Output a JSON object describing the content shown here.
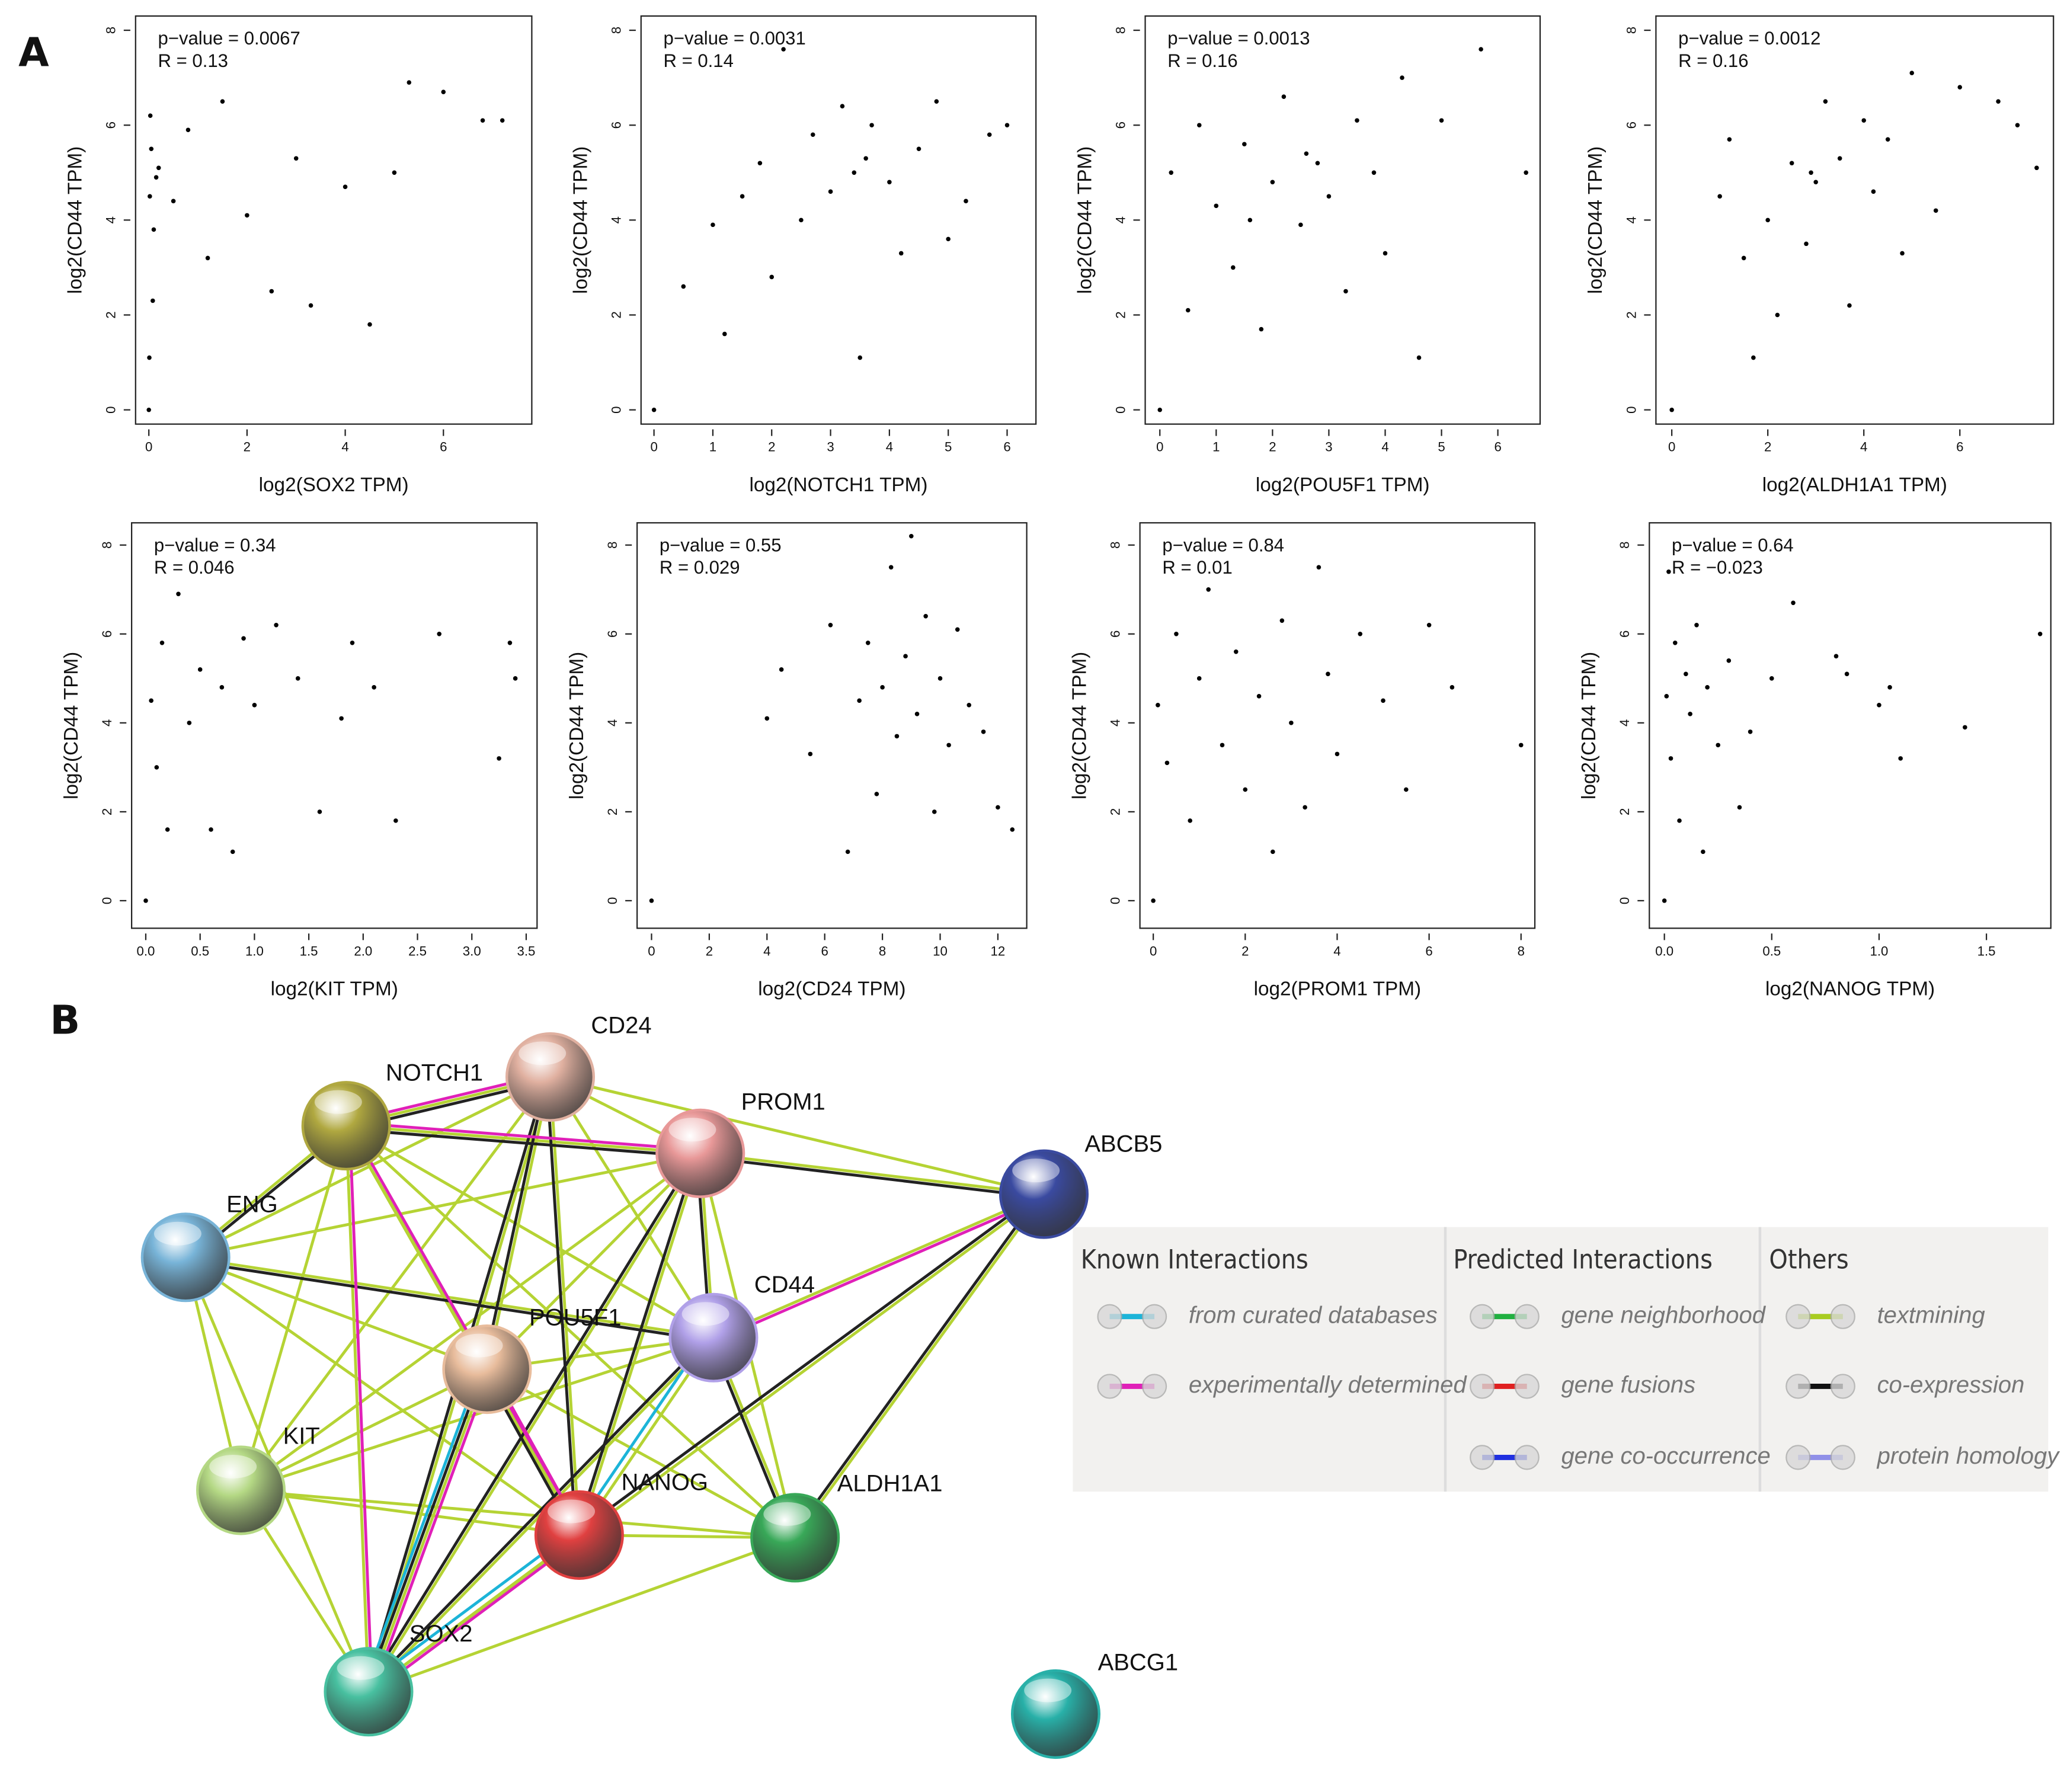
{
  "panels": [
    "A",
    "B"
  ],
  "chart_data": [
    {
      "type": "scatter",
      "annotations": [
        "p−value = 0.0067",
        "R = 0.13"
      ],
      "x_label": "log2(SOX2 TPM)",
      "y_label": "log2(CD44 TPM)",
      "color": "#000000",
      "xlim": [
        -0.27,
        7.8
      ],
      "ylim": [
        -0.3,
        8.3
      ],
      "xticks": [
        0,
        2,
        4,
        6
      ],
      "yticks": [
        0,
        2,
        4,
        6,
        8
      ],
      "x": [
        0,
        0.02,
        0.05,
        0.1,
        0.03,
        0.08,
        0.15,
        0.01,
        0.2,
        0.5,
        0.8,
        1.2,
        1.5,
        2.0,
        2.5,
        3.0,
        3.3,
        4.0,
        4.5,
        5.0,
        5.3,
        6.0,
        6.8,
        7.2
      ],
      "y": [
        0,
        4.5,
        5.5,
        3.8,
        6.2,
        2.3,
        4.9,
        1.1,
        5.1,
        4.4,
        5.9,
        3.2,
        6.5,
        4.1,
        2.5,
        5.3,
        2.2,
        4.7,
        1.8,
        5.0,
        6.9,
        6.7,
        6.1,
        6.1
      ]
    },
    {
      "type": "scatter",
      "annotations": [
        "p−value = 0.0031",
        "R = 0.14"
      ],
      "x_label": "log2(NOTCH1 TPM)",
      "y_label": "log2(CD44 TPM)",
      "color": "#000000",
      "xlim": [
        -0.22,
        6.49
      ],
      "ylim": [
        -0.3,
        8.3
      ],
      "xticks": [
        0,
        1,
        2,
        3,
        4,
        5,
        6
      ],
      "yticks": [
        0,
        2,
        4,
        6,
        8
      ],
      "x": [
        0,
        0.5,
        1.0,
        1.2,
        1.5,
        1.8,
        2.0,
        2.2,
        2.5,
        2.7,
        3.0,
        3.2,
        3.4,
        3.5,
        3.7,
        4.0,
        4.2,
        4.5,
        4.8,
        5.0,
        5.3,
        5.7,
        6.0,
        3.6
      ],
      "y": [
        0,
        2.6,
        3.9,
        1.6,
        4.5,
        5.2,
        2.8,
        7.6,
        4.0,
        5.8,
        4.6,
        6.4,
        5.0,
        1.1,
        6.0,
        4.8,
        3.3,
        5.5,
        6.5,
        3.6,
        4.4,
        5.8,
        6.0,
        5.3
      ]
    },
    {
      "type": "scatter",
      "annotations": [
        "p−value = 0.0013",
        "R = 0.16"
      ],
      "x_label": "log2(POU5F1 TPM)",
      "y_label": "log2(CD44 TPM)",
      "color": "#000000",
      "xlim": [
        -0.26,
        6.75
      ],
      "ylim": [
        -0.3,
        8.3
      ],
      "xticks": [
        0,
        1,
        2,
        3,
        4,
        5,
        6
      ],
      "yticks": [
        0,
        2,
        4,
        6,
        8
      ],
      "x": [
        0,
        0.2,
        0.5,
        0.7,
        1.0,
        1.3,
        1.5,
        1.8,
        2.0,
        2.2,
        2.5,
        2.8,
        3.0,
        3.3,
        3.5,
        3.8,
        4.0,
        4.3,
        4.6,
        5.0,
        5.7,
        6.5,
        1.6,
        2.6
      ],
      "y": [
        0,
        5.0,
        2.1,
        6.0,
        4.3,
        3.0,
        5.6,
        1.7,
        4.8,
        6.6,
        3.9,
        5.2,
        4.5,
        2.5,
        6.1,
        5.0,
        3.3,
        7.0,
        1.1,
        6.1,
        7.6,
        5.0,
        4.0,
        5.4
      ]
    },
    {
      "type": "scatter",
      "annotations": [
        "p−value = 0.0012",
        "R = 0.16"
      ],
      "x_label": "log2(ALDH1A1 TPM)",
      "y_label": "log2(CD44 TPM)",
      "color": "#000000",
      "xlim": [
        -0.33,
        7.95
      ],
      "ylim": [
        -0.3,
        8.3
      ],
      "xticks": [
        0,
        2,
        4,
        6
      ],
      "yticks": [
        0,
        2,
        4,
        6,
        8
      ],
      "x": [
        0,
        1.0,
        1.2,
        1.5,
        1.7,
        2.0,
        2.2,
        2.5,
        2.8,
        3.0,
        3.2,
        3.5,
        3.7,
        4.0,
        4.2,
        4.5,
        4.8,
        5.0,
        5.5,
        6.0,
        6.8,
        7.2,
        7.6,
        2.9
      ],
      "y": [
        0,
        4.5,
        5.7,
        3.2,
        1.1,
        4.0,
        2.0,
        5.2,
        3.5,
        4.8,
        6.5,
        5.3,
        2.2,
        6.1,
        4.6,
        5.7,
        3.3,
        7.1,
        4.2,
        6.8,
        6.5,
        6.0,
        5.1,
        5.0
      ]
    },
    {
      "type": "scatter",
      "annotations": [
        "p−value = 0.34",
        "R = 0.046"
      ],
      "x_label": "log2(KIT TPM)",
      "y_label": "log2(CD44 TPM)",
      "color": "#000000",
      "xlim": [
        -0.13,
        3.6
      ],
      "ylim": [
        -0.62,
        8.5
      ],
      "xticks": [
        {
          "value": 0,
          "label": "0.0"
        },
        0.5,
        {
          "value": 1,
          "label": "1.0"
        },
        1.5,
        {
          "value": 2,
          "label": "2.0"
        },
        2.5,
        {
          "value": 3,
          "label": "3.0"
        },
        3.5
      ],
      "yticks": [
        0,
        2,
        4,
        6,
        8
      ],
      "x": [
        0,
        0.05,
        0.1,
        0.15,
        0.2,
        0.3,
        0.4,
        0.5,
        0.6,
        0.7,
        0.8,
        0.9,
        1.0,
        1.2,
        1.4,
        1.6,
        1.8,
        1.9,
        2.1,
        2.3,
        2.7,
        3.25,
        3.35,
        3.4
      ],
      "y": [
        0,
        4.5,
        3.0,
        5.8,
        1.6,
        6.9,
        4.0,
        5.2,
        1.6,
        4.8,
        1.1,
        5.9,
        4.4,
        6.2,
        5.0,
        2.0,
        4.1,
        5.8,
        4.8,
        1.8,
        6.0,
        3.2,
        5.8,
        5.0
      ]
    },
    {
      "type": "scatter",
      "annotations": [
        "p−value = 0.55",
        "R = 0.029"
      ],
      "x_label": "log2(CD24 TPM)",
      "y_label": "log2(CD44 TPM)",
      "color": "#000000",
      "xlim": [
        -0.5,
        13.0
      ],
      "ylim": [
        -0.62,
        8.5
      ],
      "xticks": [
        0,
        2,
        4,
        6,
        8,
        10,
        12
      ],
      "yticks": [
        0,
        2,
        4,
        6,
        8
      ],
      "x": [
        0,
        4.0,
        4.5,
        5.5,
        6.2,
        6.8,
        7.2,
        7.5,
        7.8,
        8.0,
        8.3,
        8.5,
        8.8,
        9.0,
        9.2,
        9.5,
        9.8,
        10.0,
        10.3,
        10.6,
        11.0,
        11.5,
        12.0,
        12.5
      ],
      "y": [
        0,
        4.1,
        5.2,
        3.3,
        6.2,
        1.1,
        4.5,
        5.8,
        2.4,
        4.8,
        7.5,
        3.7,
        5.5,
        8.2,
        4.2,
        6.4,
        2.0,
        5.0,
        3.5,
        6.1,
        4.4,
        3.8,
        2.1,
        1.6
      ]
    },
    {
      "type": "scatter",
      "annotations": [
        "p−value = 0.84",
        "R = 0.01"
      ],
      "x_label": "log2(PROM1 TPM)",
      "y_label": "log2(CD44 TPM)",
      "color": "#000000",
      "xlim": [
        -0.29,
        8.3
      ],
      "ylim": [
        -0.62,
        8.5
      ],
      "xticks": [
        0,
        2,
        4,
        6,
        8
      ],
      "yticks": [
        0,
        2,
        4,
        6,
        8
      ],
      "x": [
        0,
        0.1,
        0.3,
        0.5,
        0.8,
        1.0,
        1.2,
        1.5,
        1.8,
        2.0,
        2.3,
        2.6,
        2.8,
        3.0,
        3.3,
        3.6,
        3.8,
        4.0,
        4.5,
        5.0,
        5.5,
        6.0,
        6.5,
        8.0
      ],
      "y": [
        0,
        4.4,
        3.1,
        6.0,
        1.8,
        5.0,
        7.0,
        3.5,
        5.6,
        2.5,
        4.6,
        1.1,
        6.3,
        4.0,
        2.1,
        7.5,
        5.1,
        3.3,
        6.0,
        4.5,
        2.5,
        6.2,
        4.8,
        3.5
      ]
    },
    {
      "type": "scatter",
      "annotations": [
        "p−value = 0.64",
        "R = −0.023"
      ],
      "x_label": "log2(NANOG TPM)",
      "y_label": "log2(CD44 TPM)",
      "color": "#000000",
      "xlim": [
        -0.07,
        1.8
      ],
      "ylim": [
        -0.62,
        8.5
      ],
      "xticks": [
        {
          "value": 0,
          "label": "0.0"
        },
        0.5,
        {
          "value": 1,
          "label": "1.0"
        },
        1.5
      ],
      "yticks": [
        0,
        2,
        4,
        6,
        8
      ],
      "x": [
        0,
        0.01,
        0.02,
        0.03,
        0.05,
        0.07,
        0.1,
        0.12,
        0.15,
        0.18,
        0.2,
        0.25,
        0.3,
        0.35,
        0.4,
        0.5,
        0.6,
        0.8,
        0.85,
        1.0,
        1.05,
        1.1,
        1.4,
        1.75
      ],
      "y": [
        0,
        4.6,
        7.4,
        3.2,
        5.8,
        1.8,
        5.1,
        4.2,
        6.2,
        1.1,
        4.8,
        3.5,
        5.4,
        2.1,
        3.8,
        5.0,
        6.7,
        5.5,
        5.1,
        4.4,
        4.8,
        3.2,
        3.9,
        6.0
      ]
    }
  ],
  "network": {
    "nodes": [
      "CD24",
      "NOTCH1",
      "PROM1",
      "ABCB5",
      "ENG",
      "CD44",
      "POU5F1",
      "KIT",
      "NANOG",
      "ALDH1A1",
      "SOX2",
      "ABCG1"
    ],
    "legend": [
      {
        "title": "Known Interactions",
        "items": [
          {
            "label": "from curated databases",
            "color": "#1cb4d8"
          },
          {
            "label": "experimentally determined",
            "color": "#e020b8"
          }
        ]
      },
      {
        "title": "Predicted Interactions",
        "items": [
          {
            "label": "gene neighborhood",
            "color": "#20b040"
          },
          {
            "label": "gene fusions",
            "color": "#e02020"
          },
          {
            "label": "gene co-occurrence",
            "color": "#2030e0"
          }
        ]
      },
      {
        "title": "Others",
        "items": [
          {
            "label": "textmining",
            "color": "#a8cc20"
          },
          {
            "label": "co-expression",
            "color": "#111111"
          },
          {
            "label": "protein homology",
            "color": "#9090e8"
          }
        ]
      }
    ]
  }
}
